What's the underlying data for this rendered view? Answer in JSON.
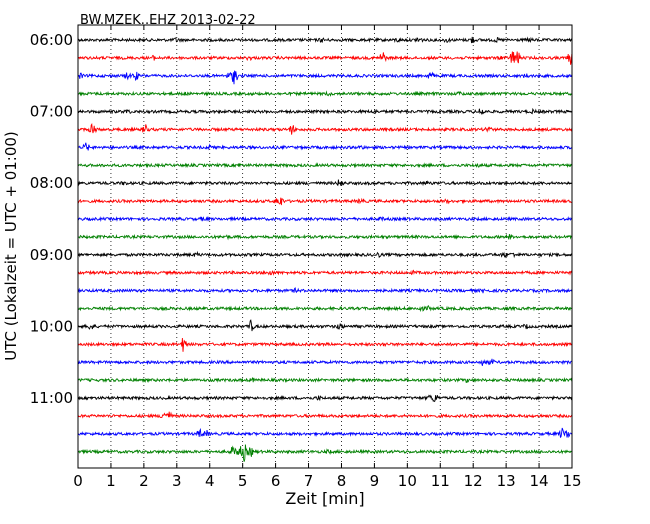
{
  "chart_data": {
    "type": "line",
    "title": "BW.MZEK..EHZ 2013-02-22",
    "xlabel": "Zeit  [min]",
    "ylabel": "UTC (Lokalzeit = UTC + 01:00)",
    "xlim": [
      0,
      15
    ],
    "x_ticks": [
      "0",
      "1",
      "2",
      "3",
      "4",
      "5",
      "6",
      "7",
      "8",
      "9",
      "10",
      "11",
      "12",
      "13",
      "14",
      "15"
    ],
    "y_tick_labels": [
      "06:00",
      "07:00",
      "08:00",
      "09:00",
      "10:00",
      "11:00"
    ],
    "grid": "vertical dotted at each minute",
    "trace_colors": [
      "#000000",
      "#ff0000",
      "#0000ff",
      "#008000"
    ],
    "traces": [
      {
        "start": "06:00",
        "color": "#000000",
        "events": [
          [
            3.0,
            0.6
          ],
          [
            7.4,
            0.5
          ],
          [
            9.7,
            0.5
          ],
          [
            10.35,
            1.3
          ],
          [
            11.2,
            0.5
          ],
          [
            11.95,
            1.0
          ],
          [
            12.7,
            0.5
          ],
          [
            13.7,
            0.4
          ]
        ]
      },
      {
        "start": "06:15",
        "color": "#ff0000",
        "events": [
          [
            2.3,
            0.5
          ],
          [
            5.2,
            0.5
          ],
          [
            9.25,
            2.2
          ],
          [
            12.9,
            0.6
          ],
          [
            13.2,
            2.5
          ],
          [
            13.35,
            2.0
          ],
          [
            14.95,
            2.0
          ]
        ]
      },
      {
        "start": "06:30",
        "color": "#0000ff",
        "events": [
          [
            0.05,
            1.0
          ],
          [
            1.5,
            0.8
          ],
          [
            1.75,
            1.3
          ],
          [
            4.6,
            1.0
          ],
          [
            4.75,
            2.6
          ],
          [
            10.7,
            1.2
          ],
          [
            13.6,
            0.5
          ]
        ]
      },
      {
        "start": "06:45",
        "color": "#008000",
        "events": [
          [
            3.2,
            0.4
          ],
          [
            7.6,
            0.4
          ],
          [
            11.6,
            0.4
          ]
        ]
      },
      {
        "start": "07:00",
        "color": "#000000",
        "events": [
          [
            1.5,
            0.5
          ],
          [
            9.0,
            0.4
          ],
          [
            12.25,
            1.3
          ],
          [
            13.8,
            0.4
          ]
        ]
      },
      {
        "start": "07:15",
        "color": "#ff0000",
        "events": [
          [
            0.45,
            2.3
          ],
          [
            2.05,
            1.6
          ],
          [
            6.5,
            1.5
          ],
          [
            12.45,
            1.0
          ]
        ]
      },
      {
        "start": "07:30",
        "color": "#0000ff",
        "events": [
          [
            0.25,
            1.3
          ],
          [
            4.0,
            0.4
          ],
          [
            8.6,
            0.4
          ]
        ]
      },
      {
        "start": "07:45",
        "color": "#008000",
        "events": [
          [
            4.9,
            0.4
          ],
          [
            12.1,
            0.4
          ]
        ]
      },
      {
        "start": "08:00",
        "color": "#000000",
        "events": [
          [
            1.4,
            0.4
          ],
          [
            7.95,
            1.2
          ],
          [
            10.6,
            0.4
          ]
        ]
      },
      {
        "start": "08:15",
        "color": "#ff0000",
        "events": [
          [
            6.05,
            1.0
          ],
          [
            6.15,
            1.5
          ],
          [
            8.6,
            0.8
          ],
          [
            11.2,
            0.4
          ]
        ]
      },
      {
        "start": "08:30",
        "color": "#0000ff",
        "events": [
          [
            3.8,
            0.4
          ],
          [
            9.2,
            0.4
          ]
        ]
      },
      {
        "start": "08:45",
        "color": "#008000",
        "events": [
          [
            4.5,
            0.4
          ],
          [
            13.1,
            0.6
          ]
        ]
      },
      {
        "start": "09:00",
        "color": "#000000",
        "events": [
          [
            3.6,
            0.5
          ],
          [
            9.1,
            0.6
          ],
          [
            12.95,
            0.6
          ],
          [
            13.2,
            0.5
          ]
        ]
      },
      {
        "start": "09:15",
        "color": "#ff0000",
        "events": [
          [
            5.85,
            0.7
          ],
          [
            10.2,
            0.4
          ]
        ]
      },
      {
        "start": "09:30",
        "color": "#0000ff",
        "events": [
          [
            6.6,
            0.4
          ],
          [
            12.3,
            0.4
          ]
        ]
      },
      {
        "start": "09:45",
        "color": "#008000",
        "events": [
          [
            10.4,
            0.8
          ],
          [
            10.65,
            0.5
          ]
        ]
      },
      {
        "start": "10:00",
        "color": "#000000",
        "events": [
          [
            0.4,
            1.3
          ],
          [
            5.25,
            1.7
          ],
          [
            7.95,
            1.0
          ],
          [
            13.6,
            0.5
          ]
        ]
      },
      {
        "start": "10:15",
        "color": "#ff0000",
        "events": [
          [
            3.2,
            2.3
          ],
          [
            9.3,
            0.5
          ]
        ]
      },
      {
        "start": "10:30",
        "color": "#0000ff",
        "events": [
          [
            12.3,
            1.0
          ],
          [
            12.55,
            0.8
          ]
        ]
      },
      {
        "start": "10:45",
        "color": "#008000",
        "events": [
          [
            5.3,
            0.4
          ],
          [
            11.8,
            0.4
          ]
        ]
      },
      {
        "start": "11:00",
        "color": "#000000",
        "events": [
          [
            7.3,
            0.5
          ],
          [
            10.7,
            0.9
          ],
          [
            10.85,
            1.4
          ]
        ]
      },
      {
        "start": "11:15",
        "color": "#ff0000",
        "events": [
          [
            2.6,
            1.5
          ],
          [
            2.75,
            1.3
          ]
        ]
      },
      {
        "start": "11:30",
        "color": "#0000ff",
        "events": [
          [
            3.7,
            1.2
          ],
          [
            3.9,
            0.9
          ],
          [
            14.7,
            1.6
          ],
          [
            14.85,
            1.3
          ]
        ]
      },
      {
        "start": "11:45",
        "color": "#008000",
        "events": [
          [
            4.7,
            1.5
          ],
          [
            4.9,
            2.0
          ],
          [
            5.05,
            2.8
          ],
          [
            5.25,
            1.4
          ],
          [
            7.6,
            0.4
          ]
        ]
      }
    ]
  }
}
